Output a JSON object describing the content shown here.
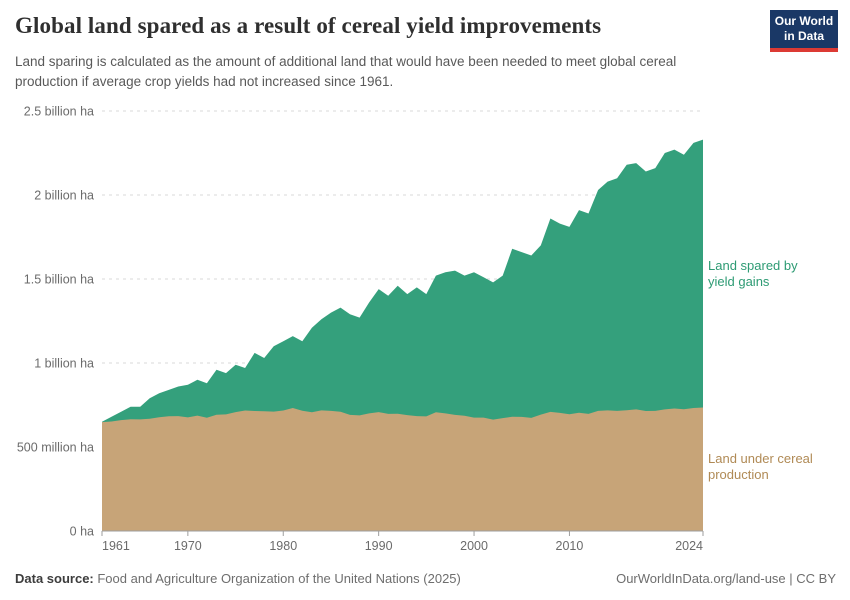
{
  "header": {
    "title": "Global land spared as a result of cereal yield improvements",
    "subtitle": "Land sparing is calculated as the amount of additional land that would have been needed to meet global cereal production if average crop yields had not increased since 1961.",
    "logo": {
      "line1": "Our World",
      "line2": "in Data",
      "bg": "#1A3866",
      "accent": "#DC3A34"
    }
  },
  "chart_data": {
    "type": "area",
    "stacked": true,
    "title": "Global land spared as a result of cereal yield improvements",
    "unit": "billion ha",
    "ylim": [
      0,
      2.5
    ],
    "grid": "dashed-horizontal",
    "legend_position": "right-annotations",
    "x": [
      1961,
      1962,
      1963,
      1964,
      1965,
      1966,
      1967,
      1968,
      1969,
      1970,
      1971,
      1972,
      1973,
      1974,
      1975,
      1976,
      1977,
      1978,
      1979,
      1980,
      1981,
      1982,
      1983,
      1984,
      1985,
      1986,
      1987,
      1988,
      1989,
      1990,
      1991,
      1992,
      1993,
      1994,
      1995,
      1996,
      1997,
      1998,
      1999,
      2000,
      2001,
      2002,
      2003,
      2004,
      2005,
      2006,
      2007,
      2008,
      2009,
      2010,
      2011,
      2012,
      2013,
      2014,
      2015,
      2016,
      2017,
      2018,
      2019,
      2020,
      2021,
      2022,
      2023,
      2024
    ],
    "series": [
      {
        "name": "Land under cereal production",
        "label_lines": [
          "Land under cereal",
          "production"
        ],
        "color": "#C7A478",
        "label_color": "#B08A55",
        "values": [
          0.648,
          0.652,
          0.66,
          0.665,
          0.664,
          0.668,
          0.677,
          0.683,
          0.684,
          0.676,
          0.687,
          0.674,
          0.692,
          0.694,
          0.708,
          0.717,
          0.714,
          0.713,
          0.711,
          0.717,
          0.732,
          0.716,
          0.707,
          0.718,
          0.715,
          0.71,
          0.691,
          0.688,
          0.7,
          0.708,
          0.697,
          0.698,
          0.69,
          0.684,
          0.682,
          0.707,
          0.7,
          0.691,
          0.686,
          0.675,
          0.675,
          0.663,
          0.672,
          0.68,
          0.679,
          0.673,
          0.693,
          0.709,
          0.703,
          0.695,
          0.704,
          0.697,
          0.715,
          0.718,
          0.715,
          0.719,
          0.724,
          0.714,
          0.715,
          0.724,
          0.729,
          0.725,
          0.732,
          0.735
        ]
      },
      {
        "name": "Land spared by yield gains",
        "label_lines": [
          "Land spared by",
          "yield gains"
        ],
        "color": "#34A07C",
        "label_color": "#2E9B74",
        "values": [
          0.002,
          0.028,
          0.05,
          0.075,
          0.076,
          0.122,
          0.143,
          0.157,
          0.176,
          0.194,
          0.213,
          0.206,
          0.268,
          0.246,
          0.282,
          0.253,
          0.346,
          0.317,
          0.389,
          0.413,
          0.428,
          0.414,
          0.503,
          0.542,
          0.585,
          0.62,
          0.599,
          0.582,
          0.66,
          0.732,
          0.703,
          0.762,
          0.72,
          0.766,
          0.728,
          0.813,
          0.84,
          0.859,
          0.834,
          0.865,
          0.835,
          0.817,
          0.848,
          1.0,
          0.981,
          0.967,
          1.007,
          1.151,
          1.127,
          1.115,
          1.206,
          1.193,
          1.315,
          1.362,
          1.385,
          1.461,
          1.466,
          1.426,
          1.445,
          1.526,
          1.541,
          1.515,
          1.578,
          1.595
        ]
      }
    ],
    "yticks": [
      {
        "v": 0,
        "label": "0 ha"
      },
      {
        "v": 0.5,
        "label": "500 million ha"
      },
      {
        "v": 1,
        "label": "1 billion ha"
      },
      {
        "v": 1.5,
        "label": "1.5 billion ha"
      },
      {
        "v": 2,
        "label": "2 billion ha"
      },
      {
        "v": 2.5,
        "label": "2.5 billion ha"
      }
    ],
    "xticks": [
      {
        "year": 1961,
        "label": "1961",
        "anchor": "start"
      },
      {
        "year": 1970,
        "label": "1970",
        "anchor": "middle"
      },
      {
        "year": 1980,
        "label": "1980",
        "anchor": "middle"
      },
      {
        "year": 1990,
        "label": "1990",
        "anchor": "middle"
      },
      {
        "year": 2000,
        "label": "2000",
        "anchor": "middle"
      },
      {
        "year": 2010,
        "label": "2010",
        "anchor": "middle"
      },
      {
        "year": 2024,
        "label": "2024",
        "anchor": "end"
      }
    ],
    "colors": {
      "grid": "#D8D8D8",
      "axis": "#9E9E9E",
      "tick_text": "#6B6B6B"
    }
  },
  "footer": {
    "source_label": "Data source:",
    "source_text": " Food and Agriculture Organization of the United Nations (2025)",
    "right_text": "OurWorldInData.org/land-use | CC BY"
  }
}
